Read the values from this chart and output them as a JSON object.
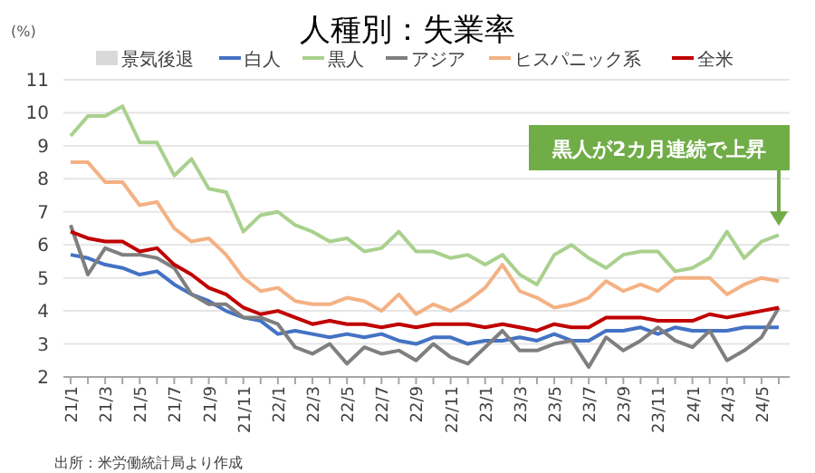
{
  "chart_data": {
    "type": "line",
    "title": "人種別：失業率",
    "ylabel": "(%)",
    "categories": [
      "21/1",
      null,
      "21/3",
      null,
      "21/5",
      null,
      "21/7",
      null,
      "21/9",
      null,
      "21/11",
      null,
      "22/1",
      null,
      "22/3",
      null,
      "22/5",
      null,
      "22/7",
      null,
      "22/9",
      null,
      "22/11",
      null,
      "23/1",
      null,
      "23/3",
      null,
      "23/5",
      null,
      "23/7",
      null,
      "23/9",
      null,
      "23/11",
      null,
      "24/1",
      null,
      "24/3",
      null,
      "24/5",
      null
    ],
    "series": [
      {
        "name": "景気後退",
        "type": "bar",
        "color": "#d9d9d9",
        "values": [
          null,
          null,
          null,
          null,
          null,
          null,
          null,
          null,
          null,
          null,
          null,
          null,
          null,
          null,
          null,
          null,
          null,
          null,
          null,
          null,
          null,
          null,
          null,
          null,
          null,
          null,
          null,
          null,
          null,
          null,
          null,
          null,
          null,
          null,
          null,
          null,
          null,
          null,
          null,
          null,
          null,
          null
        ]
      },
      {
        "name": "白人",
        "color": "#4472c4",
        "values": [
          5.7,
          5.6,
          5.4,
          5.3,
          5.1,
          5.2,
          4.8,
          4.5,
          4.3,
          4.0,
          3.8,
          3.7,
          3.3,
          3.4,
          3.3,
          3.2,
          3.3,
          3.2,
          3.3,
          3.1,
          3.0,
          3.2,
          3.2,
          3.0,
          3.1,
          3.1,
          3.2,
          3.1,
          3.3,
          3.1,
          3.1,
          3.4,
          3.4,
          3.5,
          3.3,
          3.5,
          3.4,
          3.4,
          3.4,
          3.5,
          3.5,
          3.5
        ]
      },
      {
        "name": "黒人",
        "color": "#a9d18e",
        "values": [
          9.3,
          9.9,
          9.9,
          10.2,
          9.1,
          9.1,
          8.1,
          8.6,
          7.7,
          7.6,
          6.4,
          6.9,
          7.0,
          6.6,
          6.4,
          6.1,
          6.2,
          5.8,
          5.9,
          6.4,
          5.8,
          5.8,
          5.6,
          5.7,
          5.4,
          5.7,
          5.1,
          4.8,
          5.7,
          6.0,
          5.6,
          5.3,
          5.7,
          5.8,
          5.8,
          5.2,
          5.3,
          5.6,
          6.4,
          5.6,
          6.1,
          6.3
        ]
      },
      {
        "name": "アジア",
        "color": "#7f7f7f",
        "values": [
          6.6,
          5.1,
          5.9,
          5.7,
          5.7,
          5.6,
          5.3,
          4.5,
          4.2,
          4.2,
          3.8,
          3.8,
          3.6,
          2.9,
          2.7,
          3.0,
          2.4,
          2.9,
          2.7,
          2.8,
          2.5,
          3.0,
          2.6,
          2.4,
          2.9,
          3.4,
          2.8,
          2.8,
          3.0,
          3.1,
          2.3,
          3.2,
          2.8,
          3.1,
          3.5,
          3.1,
          2.9,
          3.4,
          2.5,
          2.8,
          3.2,
          4.1
        ]
      },
      {
        "name": "ヒスパニック系",
        "color": "#f4b183",
        "values": [
          8.5,
          8.5,
          7.9,
          7.9,
          7.2,
          7.3,
          6.5,
          6.1,
          6.2,
          5.7,
          5.0,
          4.6,
          4.7,
          4.3,
          4.2,
          4.2,
          4.4,
          4.3,
          4.0,
          4.5,
          3.9,
          4.2,
          4.0,
          4.3,
          4.7,
          5.4,
          4.6,
          4.4,
          4.1,
          4.2,
          4.4,
          4.9,
          4.6,
          4.8,
          4.6,
          5.0,
          5.0,
          5.0,
          4.5,
          4.8,
          5.0,
          4.9
        ]
      },
      {
        "name": "全米",
        "color": "#c00000",
        "values": [
          6.4,
          6.2,
          6.1,
          6.1,
          5.8,
          5.9,
          5.4,
          5.1,
          4.7,
          4.5,
          4.1,
          3.9,
          4.0,
          3.8,
          3.6,
          3.7,
          3.6,
          3.6,
          3.5,
          3.6,
          3.5,
          3.6,
          3.6,
          3.6,
          3.5,
          3.6,
          3.5,
          3.4,
          3.6,
          3.5,
          3.5,
          3.8,
          3.8,
          3.8,
          3.7,
          3.7,
          3.7,
          3.9,
          3.8,
          3.9,
          4.0,
          4.1
        ]
      }
    ],
    "ylim": [
      2,
      11
    ],
    "yticks": [
      2,
      3,
      4,
      5,
      6,
      7,
      8,
      9,
      10,
      11
    ],
    "grid": "y",
    "legend": "top",
    "marker": "none",
    "line_style": "solid",
    "annotations": [
      "黒人が2カ月連続で上昇",
      "出所：米労働統計局より作成"
    ]
  }
}
